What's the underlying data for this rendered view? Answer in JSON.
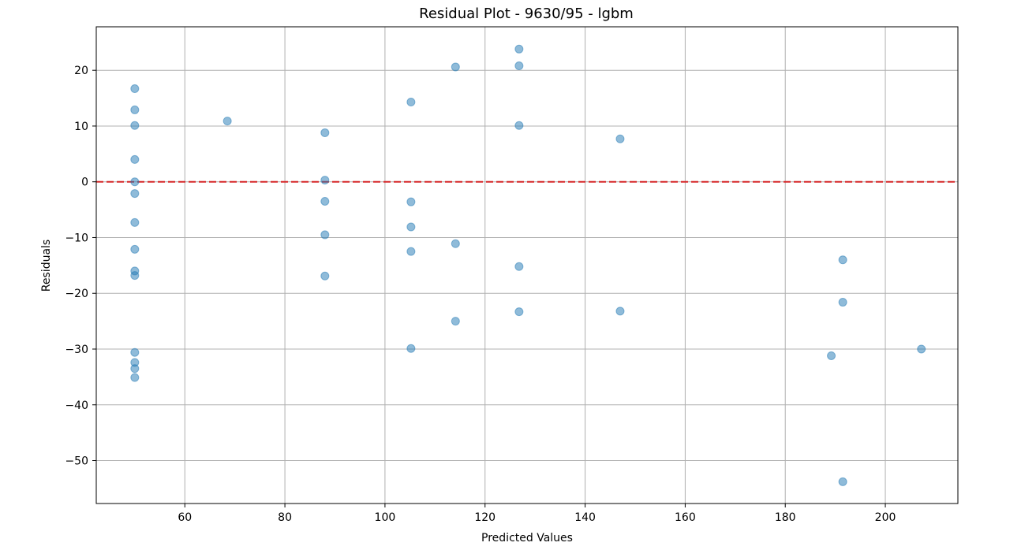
{
  "chart_data": {
    "type": "scatter",
    "title": "Residual Plot - 9630/95 - lgbm",
    "xlabel": "Predicted Values",
    "ylabel": "Residuals",
    "xlim": [
      42.3,
      214.5
    ],
    "ylim": [
      -57.7,
      27.8
    ],
    "xticks": [
      60,
      80,
      100,
      120,
      140,
      160,
      180,
      200
    ],
    "yticks": [
      -50,
      -40,
      -30,
      -20,
      -10,
      0,
      10,
      20
    ],
    "grid": true,
    "reference_line": {
      "y": 0,
      "style": "dashed",
      "color": "#d62728"
    },
    "point_color": "#1f77b4",
    "points": [
      {
        "x": 50.0,
        "y": 16.7
      },
      {
        "x": 50.0,
        "y": 12.9
      },
      {
        "x": 50.0,
        "y": 10.1
      },
      {
        "x": 50.0,
        "y": 4.0
      },
      {
        "x": 50.0,
        "y": 0.0
      },
      {
        "x": 50.0,
        "y": -2.1
      },
      {
        "x": 50.0,
        "y": -7.3
      },
      {
        "x": 50.0,
        "y": -12.1
      },
      {
        "x": 50.0,
        "y": -16.0
      },
      {
        "x": 50.0,
        "y": -16.8
      },
      {
        "x": 50.0,
        "y": -30.6
      },
      {
        "x": 50.0,
        "y": -32.4
      },
      {
        "x": 50.0,
        "y": -33.5
      },
      {
        "x": 50.0,
        "y": -35.1
      },
      {
        "x": 68.5,
        "y": 10.9
      },
      {
        "x": 88.0,
        "y": 8.8
      },
      {
        "x": 88.0,
        "y": 0.3
      },
      {
        "x": 88.0,
        "y": -3.5
      },
      {
        "x": 88.0,
        "y": -9.5
      },
      {
        "x": 88.0,
        "y": -16.9
      },
      {
        "x": 105.2,
        "y": 14.3
      },
      {
        "x": 105.2,
        "y": -3.6
      },
      {
        "x": 105.2,
        "y": -8.1
      },
      {
        "x": 105.2,
        "y": -12.5
      },
      {
        "x": 105.2,
        "y": -29.9
      },
      {
        "x": 114.1,
        "y": 20.6
      },
      {
        "x": 114.1,
        "y": -11.1
      },
      {
        "x": 114.1,
        "y": -25.0
      },
      {
        "x": 126.8,
        "y": 23.8
      },
      {
        "x": 126.8,
        "y": 20.8
      },
      {
        "x": 126.8,
        "y": 10.1
      },
      {
        "x": 126.8,
        "y": -15.2
      },
      {
        "x": 126.8,
        "y": -23.3
      },
      {
        "x": 147.0,
        "y": 7.7
      },
      {
        "x": 147.0,
        "y": -23.2
      },
      {
        "x": 189.2,
        "y": -31.2
      },
      {
        "x": 191.5,
        "y": -14.0
      },
      {
        "x": 191.5,
        "y": -21.6
      },
      {
        "x": 191.5,
        "y": -53.8
      },
      {
        "x": 207.2,
        "y": -30.0
      }
    ]
  }
}
